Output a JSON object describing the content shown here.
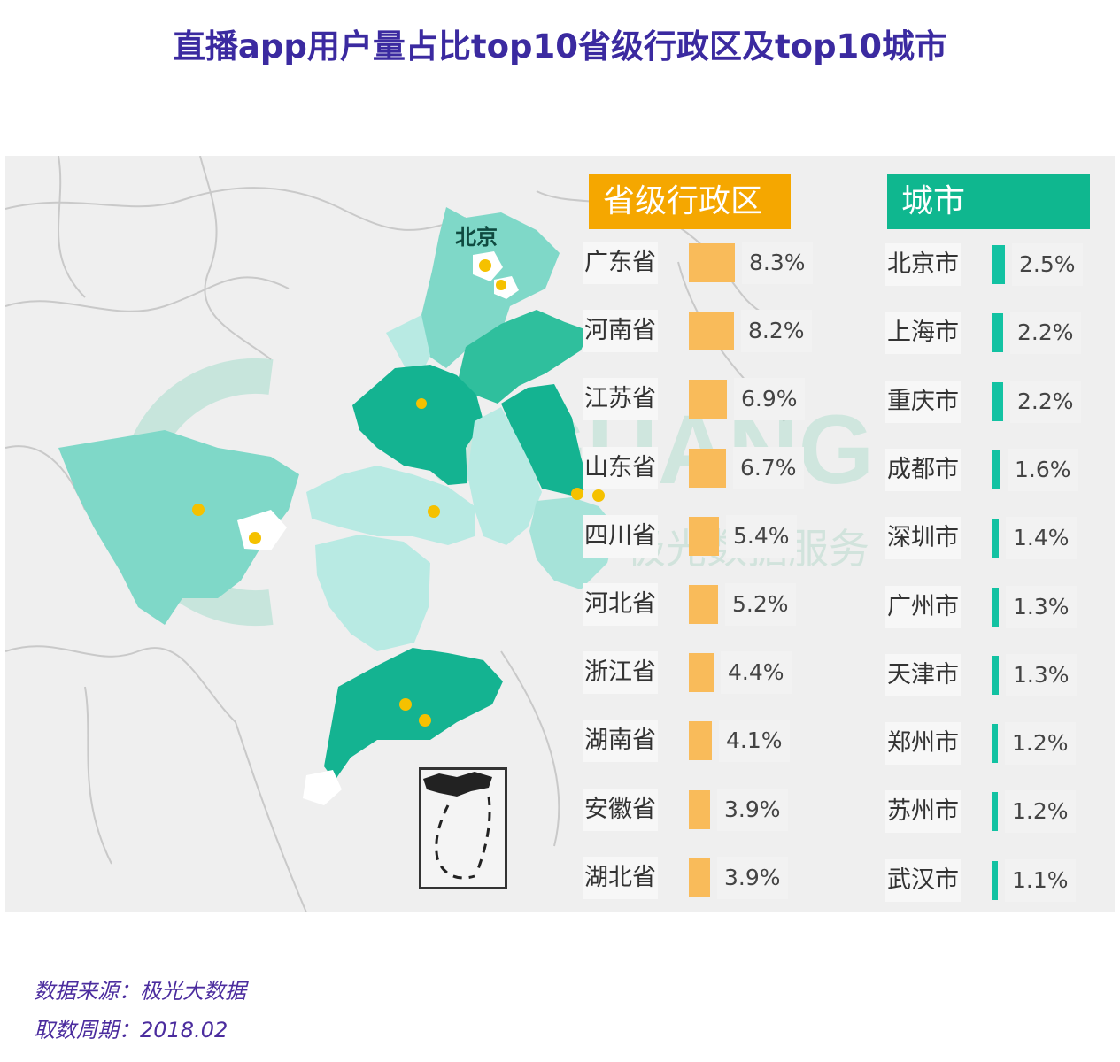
{
  "title": "直播app用户量占比top10省级行政区及top10城市",
  "map_labels": {
    "beijing": "北京"
  },
  "watermark": {
    "latin": "JIGUANG",
    "chinese": "极光数据服务"
  },
  "colors": {
    "province_accent": "#f5a700",
    "province_bar": "#f9bb5a",
    "city_accent": "#0fb78f",
    "city_bar": "#12c2a2",
    "region_dark": "#14b391",
    "region_mid": "#7fd8c8",
    "region_light": "#b8eae3",
    "marker": "#f5c100"
  },
  "provinces": {
    "header": "省级行政区",
    "items": [
      {
        "name": "广东省",
        "value": "8.3%",
        "share": 8.3
      },
      {
        "name": "河南省",
        "value": "8.2%",
        "share": 8.2
      },
      {
        "name": "江苏省",
        "value": "6.9%",
        "share": 6.9
      },
      {
        "name": "山东省",
        "value": "6.7%",
        "share": 6.7
      },
      {
        "name": "四川省",
        "value": "5.4%",
        "share": 5.4
      },
      {
        "name": "河北省",
        "value": "5.2%",
        "share": 5.2
      },
      {
        "name": "浙江省",
        "value": "4.4%",
        "share": 4.4
      },
      {
        "name": "湖南省",
        "value": "4.1%",
        "share": 4.1
      },
      {
        "name": "安徽省",
        "value": "3.9%",
        "share": 3.9
      },
      {
        "name": "湖北省",
        "value": "3.9%",
        "share": 3.9
      }
    ]
  },
  "cities": {
    "header": "城市",
    "items": [
      {
        "name": "北京市",
        "value": "2.5%",
        "share": 2.5
      },
      {
        "name": "上海市",
        "value": "2.2%",
        "share": 2.2
      },
      {
        "name": "重庆市",
        "value": "2.2%",
        "share": 2.2
      },
      {
        "name": "成都市",
        "value": "1.6%",
        "share": 1.6
      },
      {
        "name": "深圳市",
        "value": "1.4%",
        "share": 1.4
      },
      {
        "name": "广州市",
        "value": "1.3%",
        "share": 1.3
      },
      {
        "name": "天津市",
        "value": "1.3%",
        "share": 1.3
      },
      {
        "name": "郑州市",
        "value": "1.2%",
        "share": 1.2
      },
      {
        "name": "苏州市",
        "value": "1.2%",
        "share": 1.2
      },
      {
        "name": "武汉市",
        "value": "1.1%",
        "share": 1.1
      }
    ]
  },
  "source": {
    "data_source": "数据来源：极光大数据",
    "period": "取数周期：2018.02"
  }
}
